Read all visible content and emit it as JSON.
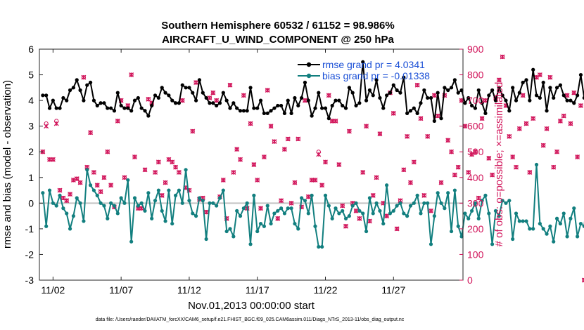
{
  "chart_data": {
    "type": "line",
    "title": "Southern Hemisphere 60532 / 61152 = 98.986%",
    "subtitle": "AIRCRAFT_U_WIND_COMPONENT @ 250 hPa",
    "xlabel": "Nov.01,2013 00:00:00 start",
    "ylabel": "rmse and bias (model - observation)",
    "y2label": "# of obs: o=possible; ×=assimilated",
    "footnote": "data file: /Users/raeder/DAI/ATM_forcXX/CAM6_setup/f.e21.FHIST_BGC.f09_025.CAM6assim.011/Diags_NTrS_2013-11/obs_diag_output.nc",
    "xlim": [
      0,
      31.1
    ],
    "ylim": [
      -3,
      6
    ],
    "y2lim": [
      0,
      900
    ],
    "x_ticks": [
      1,
      6,
      11,
      16,
      21,
      26
    ],
    "x_tick_labels": [
      "11/02",
      "11/07",
      "11/12",
      "11/17",
      "11/22",
      "11/27"
    ],
    "y_ticks": [
      -3,
      -2,
      -1,
      0,
      1,
      2,
      3,
      4,
      5,
      6
    ],
    "y_tick_labels": [
      "-3",
      "-2",
      "-1",
      "0",
      "1",
      "2",
      "3",
      "4",
      "5",
      "6"
    ],
    "y2_ticks": [
      0,
      100,
      200,
      300,
      400,
      500,
      600,
      700,
      800,
      900
    ],
    "y2_tick_labels": [
      "0",
      "100",
      "200",
      "300",
      "400",
      "500",
      "600",
      "700",
      "800",
      "900"
    ],
    "x_step_days": 0.25,
    "x_start": 0.25,
    "series": [
      {
        "name": "rmse grand pr = 4.0341",
        "color": "#000000",
        "axis": "left",
        "values": [
          4.2,
          4.2,
          3.7,
          4.0,
          3.7,
          3.7,
          4.1,
          4.0,
          4.4,
          4.5,
          4.8,
          4.4,
          4.0,
          4.6,
          4.7,
          4.0,
          3.8,
          3.9,
          3.9,
          3.7,
          3.7,
          3.6,
          4.3,
          3.8,
          3.7,
          3.7,
          3.6,
          4.0,
          4.1,
          3.7,
          3.6,
          3.4,
          3.8,
          4.2,
          4.1,
          4.5,
          4.3,
          4.2,
          4.0,
          3.9,
          3.9,
          4.6,
          4.5,
          4.5,
          4.3,
          4.0,
          4.8,
          4.3,
          4.1,
          3.9,
          3.9,
          3.8,
          3.9,
          4.3,
          4.0,
          3.7,
          3.9,
          3.7,
          3.6,
          3.6,
          3.6,
          4.5,
          3.7,
          3.7,
          4.0,
          3.5,
          3.5,
          3.6,
          3.7,
          3.8,
          3.8,
          3.5,
          4.0,
          3.5,
          4.1,
          3.8,
          4.1,
          4.7,
          4.0,
          3.4,
          3.7,
          4.3,
          3.7,
          3.7,
          3.3,
          3.8,
          4.0,
          4.0,
          3.8,
          3.7,
          4.5,
          4.3,
          3.8,
          3.9,
          5.5,
          4.0,
          4.4,
          4.2,
          4.8,
          4.1,
          3.7,
          4.2,
          4.3,
          4.6,
          4.4,
          4.3,
          4.9,
          3.5,
          3.6,
          3.7,
          3.5,
          3.9,
          4.4,
          4.1,
          4.1,
          3.2,
          4.3,
          3.3,
          4.5,
          4.4,
          4.5,
          4.8,
          4.3,
          4.4,
          3.9,
          4.1,
          3.8,
          3.7,
          4.4,
          3.9,
          3.5,
          4.2,
          4.4,
          4.0,
          4.5,
          4.2,
          4.0,
          3.6,
          4.5,
          4.0,
          4.3,
          4.7,
          4.8,
          4.0,
          5.2,
          4.2,
          4.1,
          4.7,
          3.6,
          4.5,
          4.1,
          4.5,
          4.6,
          4.2,
          4.0,
          4.0,
          3.9,
          4.2,
          5.0,
          4.1,
          4.0,
          3.7,
          4.0
        ]
      },
      {
        "name": "bias grand pr = -0.01338",
        "color": "#127f7f",
        "axis": "left",
        "values": [
          0.4,
          -0.9,
          0.5,
          0.0,
          -0.1,
          0.3,
          -0.2,
          -0.4,
          -1.0,
          -0.5,
          0.2,
          0.0,
          -0.7,
          1.3,
          0.7,
          0.5,
          0.3,
          0.0,
          -0.1,
          -0.6,
          0.0,
          -0.1,
          -0.4,
          0.2,
          0.0,
          0.9,
          -1.5,
          0.2,
          -0.1,
          0.0,
          -0.3,
          0.4,
          -0.6,
          0.1,
          0.5,
          -0.3,
          -0.7,
          0.5,
          -0.8,
          0.3,
          0.5,
          0.0,
          1.3,
          0.1,
          -0.4,
          -0.5,
          0.2,
          0.1,
          -1.4,
          0.0,
          0.0,
          -0.1,
          0.2,
          0.5,
          -1.1,
          -1.0,
          -1.3,
          -0.3,
          -0.5,
          -0.2,
          0.0,
          -1.6,
          0.3,
          -1.1,
          -0.8,
          -0.9,
          -0.1,
          -0.8,
          -0.4,
          -0.3,
          -0.2,
          -0.4,
          -0.2,
          -0.2,
          -0.8,
          -1.0,
          0.2,
          0.1,
          -0.4,
          0.3,
          -0.9,
          -1.7,
          -1.7,
          0.3,
          -0.1,
          -0.6,
          -0.2,
          -0.4,
          -0.3,
          -0.6,
          -0.5,
          -0.1,
          0.0,
          -0.3,
          -0.4,
          -1.1,
          0.2,
          -0.4,
          0.0,
          -0.3,
          -0.8,
          0.7,
          -0.4,
          -0.3,
          -0.1,
          0.0,
          -0.4,
          -0.5,
          -0.1,
          0.0,
          0.3,
          -0.4,
          0.0,
          0.0,
          -1.6,
          -0.5,
          0.4,
          0.0,
          -0.2,
          0.4,
          -1.1,
          0.5,
          -0.9,
          -1.3,
          -0.4,
          -0.6,
          -0.3,
          0.0,
          -0.6,
          0.1,
          0.3,
          -0.4,
          -1.6,
          -0.3,
          -0.5,
          0.1,
          0.0,
          0.1,
          -1.4,
          -0.4,
          -0.7,
          -0.7,
          -0.7,
          -1.0,
          -1.0,
          1.5,
          -0.8,
          -1.0,
          -1.2,
          -0.9,
          -1.5,
          -0.6,
          -0.8,
          -0.4,
          -1.3,
          -0.6,
          -0.2,
          -1.3,
          -0.8,
          -0.9,
          0.5
        ]
      },
      {
        "name": "# obs possible",
        "color": "#d1145a",
        "axis": "right",
        "marker": "o",
        "values": [
          500,
          610,
          470,
          470,
          620,
          350,
          320,
          310,
          335,
          390,
          395,
          380,
          790,
          440,
          575,
          420,
          370,
          345,
          400,
          500,
          370,
          285,
          620,
          700,
          400,
          680,
          800,
          480,
          280,
          280,
          430,
          705,
          690,
          420,
          460,
          330,
          380,
          470,
          460,
          440,
          420,
          700,
          360,
          350,
          580,
          770,
          315,
          320,
          265,
          710,
          730,
          700,
          325,
          390,
          240,
          760,
          420,
          510,
          470,
          720,
          280,
          610,
          450,
          390,
          280,
          480,
          740,
          600,
          540,
          240,
          310,
          510,
          550,
          300,
          380,
          550,
          285,
          700,
          325,
          390,
          390,
          500,
          370,
          460,
          720,
          620,
          620,
          450,
          290,
          210,
          580,
          300,
          270,
          240,
          420,
          600,
          230,
          330,
          400,
          570,
          300,
          250,
          730,
          650,
          200,
          310,
          430,
          560,
          380,
          460,
          760,
          630,
          330,
          560,
          270,
          720,
          640,
          380,
          720,
          545,
          500,
          410,
          440,
          700,
          600,
          420,
          490,
          500,
          320,
          630,
          700,
          475,
          410,
          710,
          780,
          870,
          680,
          560,
          480,
          440,
          590,
          720,
          610,
          420,
          630,
          790,
          800,
          525,
          590,
          790,
          440,
          500,
          620,
          640,
          720,
          610,
          730,
          480,
          680,
          0
        ]
      },
      {
        "name": "# obs assimilated",
        "color": "#d1145a",
        "axis": "right",
        "marker": "x",
        "values": [
          500,
          600,
          470,
          470,
          610,
          350,
          320,
          310,
          335,
          390,
          395,
          380,
          790,
          440,
          575,
          420,
          370,
          345,
          400,
          500,
          370,
          285,
          620,
          700,
          400,
          680,
          800,
          480,
          280,
          280,
          430,
          705,
          690,
          420,
          460,
          330,
          380,
          470,
          460,
          440,
          420,
          700,
          360,
          350,
          580,
          770,
          315,
          320,
          265,
          710,
          730,
          700,
          325,
          390,
          240,
          760,
          420,
          510,
          470,
          720,
          280,
          610,
          450,
          390,
          280,
          480,
          740,
          600,
          540,
          240,
          310,
          510,
          550,
          300,
          380,
          550,
          285,
          700,
          325,
          390,
          390,
          490,
          370,
          460,
          720,
          620,
          620,
          450,
          290,
          210,
          580,
          300,
          270,
          240,
          420,
          600,
          230,
          330,
          400,
          570,
          300,
          250,
          730,
          650,
          200,
          310,
          430,
          560,
          380,
          460,
          760,
          630,
          330,
          560,
          270,
          720,
          640,
          380,
          720,
          545,
          500,
          410,
          440,
          700,
          600,
          420,
          490,
          500,
          320,
          630,
          700,
          475,
          410,
          710,
          780,
          870,
          680,
          560,
          480,
          440,
          590,
          720,
          610,
          420,
          630,
          790,
          800,
          525,
          590,
          790,
          440,
          500,
          620,
          640,
          720,
          610,
          730,
          480,
          680,
          0
        ]
      }
    ],
    "legend": [
      "rmse grand pr = 4.0341",
      "bias grand pr = -0.01338"
    ]
  }
}
